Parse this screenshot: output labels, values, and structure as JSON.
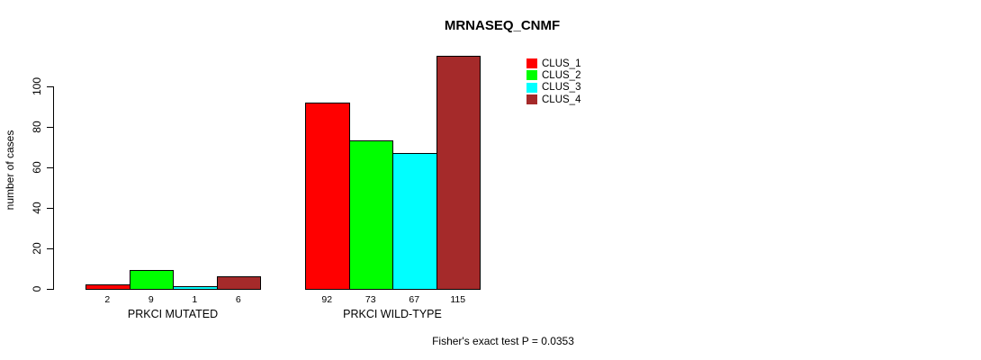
{
  "chart_data": {
    "type": "bar",
    "title": "MRNASEQ_CNMF",
    "ylabel": "number of cases",
    "xlabel": "",
    "footer": "Fisher's exact test P = 0.0353",
    "groups": [
      "PRKCI MUTATED",
      "PRKCI WILD-TYPE"
    ],
    "series": [
      {
        "name": "CLUS_1",
        "color": "#FF0000",
        "values": [
          2,
          92
        ]
      },
      {
        "name": "CLUS_2",
        "color": "#00FF00",
        "values": [
          9,
          73
        ]
      },
      {
        "name": "CLUS_3",
        "color": "#00FFFF",
        "values": [
          1,
          67
        ]
      },
      {
        "name": "CLUS_4",
        "color": "#A52A2A",
        "values": [
          6,
          115
        ]
      }
    ],
    "bar_labels": [
      [
        "2",
        "9",
        "1",
        "6"
      ],
      [
        "92",
        "73",
        "67",
        "115"
      ]
    ],
    "y_ticks": [
      0,
      20,
      40,
      60,
      80,
      100
    ],
    "ylim": [
      0,
      115
    ],
    "grid": false,
    "legend_position": "top-right",
    "background_color": "#FFFFFF",
    "axis_color": "#000000"
  }
}
